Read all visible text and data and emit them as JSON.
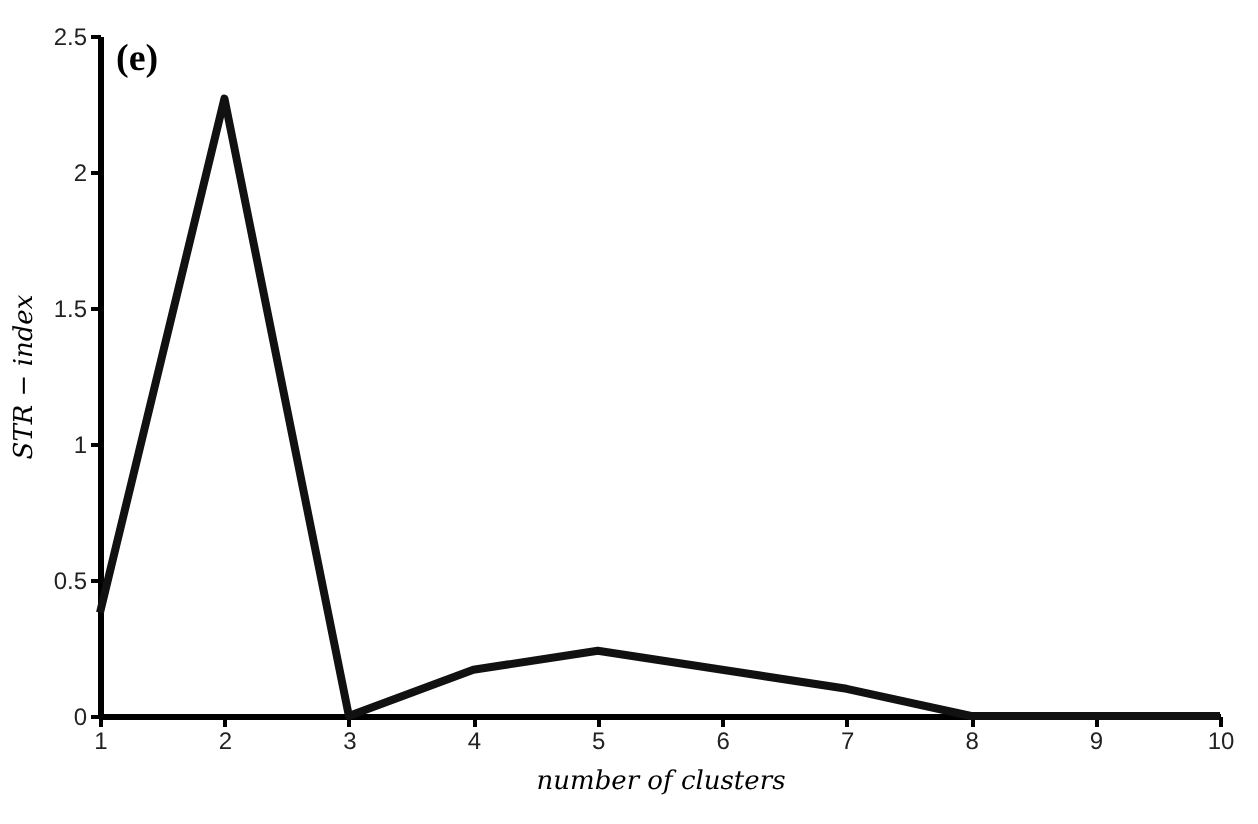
{
  "chart_data": {
    "type": "line",
    "annotations": [
      "(e)"
    ],
    "xlabel": "number of clusters",
    "ylabel": "STR − index",
    "x": [
      1,
      2,
      3,
      4,
      5,
      6,
      7,
      8,
      9,
      10
    ],
    "series": [
      {
        "color": "#111111",
        "values": [
          0.38,
          2.27,
          0,
          0.17,
          0.24,
          0.17,
          0.1,
          0,
          0,
          0
        ]
      }
    ],
    "xlim": [
      1,
      10
    ],
    "xticks": [
      1,
      2,
      3,
      4,
      5,
      6,
      7,
      8,
      9,
      10
    ],
    "ylim": [
      0,
      2.5
    ],
    "yticks": [
      0,
      0.5,
      1,
      1.5,
      2,
      2.5
    ],
    "grid": false,
    "marker": "none",
    "line_style": "solid"
  }
}
